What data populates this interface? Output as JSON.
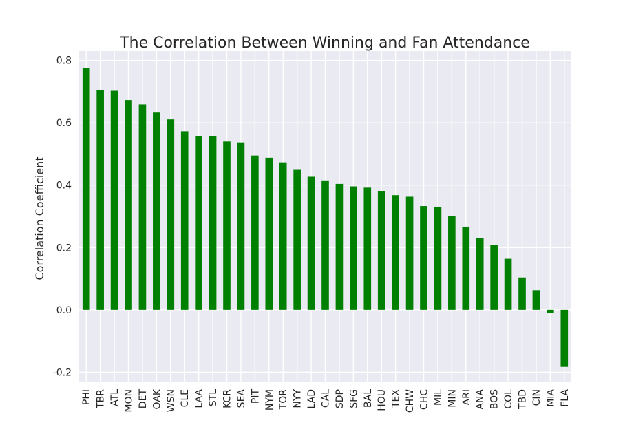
{
  "chart_data": {
    "type": "bar",
    "title": "The Correlation Between Winning and Fan Attendance",
    "xlabel": "",
    "ylabel": "Correlation Coefficient",
    "ylim": [
      -0.23,
      0.83
    ],
    "yticks": [
      "-0.2",
      "0.0",
      "0.2",
      "0.4",
      "0.6",
      "0.8"
    ],
    "ytick_values": [
      -0.2,
      0.0,
      0.2,
      0.4,
      0.6,
      0.8
    ],
    "grid": true,
    "bar_color": "#008000",
    "background_color": "#eaeaf2",
    "categories": [
      "PHI",
      "TBR",
      "ATL",
      "MON",
      "DET",
      "OAK",
      "WSN",
      "CLE",
      "LAA",
      "STL",
      "KCR",
      "SEA",
      "PIT",
      "NYM",
      "TOR",
      "NYY",
      "LAD",
      "CAL",
      "SDP",
      "SFG",
      "BAL",
      "HOU",
      "TEX",
      "CHW",
      "CHC",
      "MIL",
      "MIN",
      "ARI",
      "ANA",
      "BOS",
      "COL",
      "TBD",
      "CIN",
      "MIA",
      "FLA"
    ],
    "values": [
      0.775,
      0.705,
      0.703,
      0.673,
      0.659,
      0.633,
      0.611,
      0.573,
      0.558,
      0.558,
      0.54,
      0.537,
      0.495,
      0.488,
      0.473,
      0.449,
      0.427,
      0.413,
      0.404,
      0.396,
      0.392,
      0.38,
      0.368,
      0.363,
      0.333,
      0.331,
      0.302,
      0.267,
      0.231,
      0.208,
      0.164,
      0.104,
      0.063,
      -0.01,
      -0.183
    ]
  }
}
